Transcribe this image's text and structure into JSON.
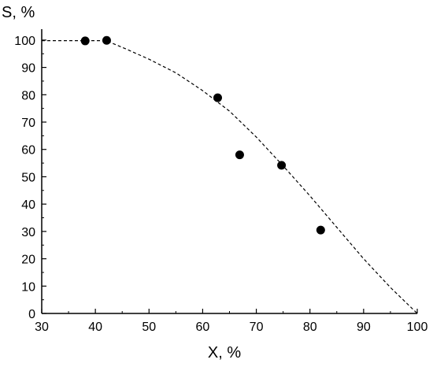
{
  "chart_data": {
    "type": "scatter",
    "xlabel": "X, %",
    "ylabel": "S, %",
    "xlim": [
      30,
      100
    ],
    "ylim": [
      0,
      104
    ],
    "x_ticks": [
      30,
      40,
      50,
      60,
      70,
      80,
      90,
      100
    ],
    "y_ticks": [
      0,
      10,
      20,
      30,
      40,
      50,
      60,
      70,
      80,
      90,
      100
    ],
    "grid": false,
    "legend": "none",
    "series": [
      {
        "type": "scatter",
        "color": "#000000",
        "points": [
          {
            "x": 38.1,
            "y": 99.7
          },
          {
            "x": 42.1,
            "y": 99.9
          },
          {
            "x": 62.8,
            "y": 78.9
          },
          {
            "x": 66.9,
            "y": 58.0
          },
          {
            "x": 74.7,
            "y": 54.2
          },
          {
            "x": 82.0,
            "y": 30.5
          }
        ]
      },
      {
        "type": "line",
        "style": "dashed",
        "color": "#000000",
        "points": [
          {
            "x": 30,
            "y": 99.8
          },
          {
            "x": 42,
            "y": 99.8
          },
          {
            "x": 46,
            "y": 96.5
          },
          {
            "x": 50,
            "y": 93
          },
          {
            "x": 55,
            "y": 88
          },
          {
            "x": 60,
            "y": 81.5
          },
          {
            "x": 65,
            "y": 74
          },
          {
            "x": 70,
            "y": 64.5
          },
          {
            "x": 75,
            "y": 54
          },
          {
            "x": 80,
            "y": 43
          },
          {
            "x": 85,
            "y": 31.5
          },
          {
            "x": 90,
            "y": 20
          },
          {
            "x": 95,
            "y": 9.5
          },
          {
            "x": 100,
            "y": 0
          }
        ]
      }
    ]
  }
}
